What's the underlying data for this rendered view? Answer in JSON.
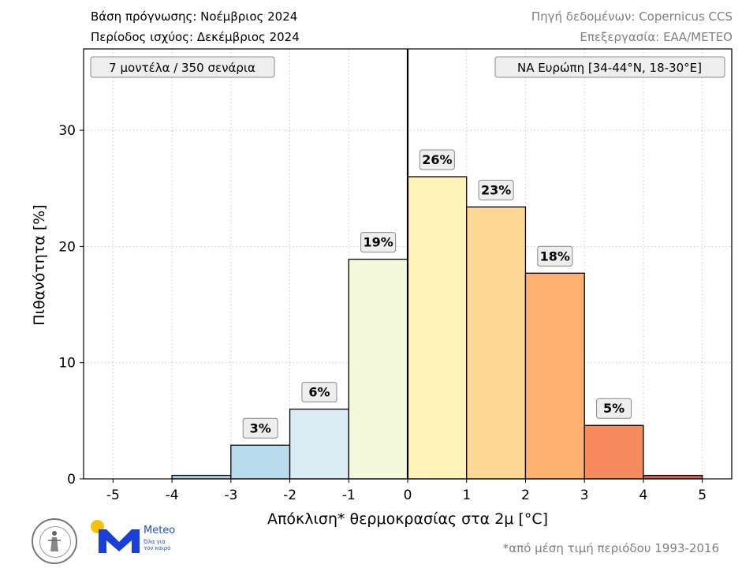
{
  "header": {
    "left_line1": "Βάση πρόγνωσης: Νοέμβριος 2024",
    "left_line2": "Περίοδος ισχύος: Δεκέμβριος 2024",
    "right_line1": "Πηγή δεδομένων: Copernicus CCS",
    "right_line2": "Επεξεργασία: ΕΑΑ/METEO"
  },
  "chart_data": {
    "type": "bar",
    "xlabel": "Απόκλιση* θερμοκρασίας στα 2μ [°C]",
    "ylabel": "Πιθανότητα [%]",
    "xlim": [
      -5.5,
      5.5
    ],
    "ylim": [
      0,
      37
    ],
    "xticks": [
      "-5",
      "-4",
      "-3",
      "-2",
      "-1",
      "0",
      "1",
      "2",
      "3",
      "4",
      "5"
    ],
    "yticks": [
      "0",
      "10",
      "20",
      "30"
    ],
    "grid": true,
    "bins": [
      {
        "from": -4,
        "to": -3,
        "value": 0.3,
        "label": "",
        "color": "#b4cde0"
      },
      {
        "from": -3,
        "to": -2,
        "value": 2.9,
        "label": "3%",
        "color": "#b9dced"
      },
      {
        "from": -2,
        "to": -1,
        "value": 6.0,
        "label": "6%",
        "color": "#daedf4"
      },
      {
        "from": -1,
        "to": 0,
        "value": 18.9,
        "label": "19%",
        "color": "#f4f9dc"
      },
      {
        "from": 0,
        "to": 1,
        "value": 26.0,
        "label": "26%",
        "color": "#fff4b8"
      },
      {
        "from": 1,
        "to": 2,
        "value": 23.4,
        "label": "23%",
        "color": "#fdd895"
      },
      {
        "from": 2,
        "to": 3,
        "value": 17.7,
        "label": "18%",
        "color": "#fdb272"
      },
      {
        "from": 3,
        "to": 4,
        "value": 4.6,
        "label": "5%",
        "color": "#f68b5e"
      },
      {
        "from": 4,
        "to": 5,
        "value": 0.3,
        "label": "",
        "color": "#d6604d"
      }
    ],
    "reference_line_x": 0,
    "annotations": {
      "left_box": "7 μοντέλα / 350 σενάρια",
      "right_box": "ΝΑ Ευρώπη [34-44°N, 18-30°E]"
    }
  },
  "logos": {
    "meteo_name": "Meteo",
    "meteo_tagline_1": "Όλα για",
    "meteo_tagline_2": "τον καιρό"
  },
  "footnote": "*από μέση τιμή περιόδου 1993-2016"
}
